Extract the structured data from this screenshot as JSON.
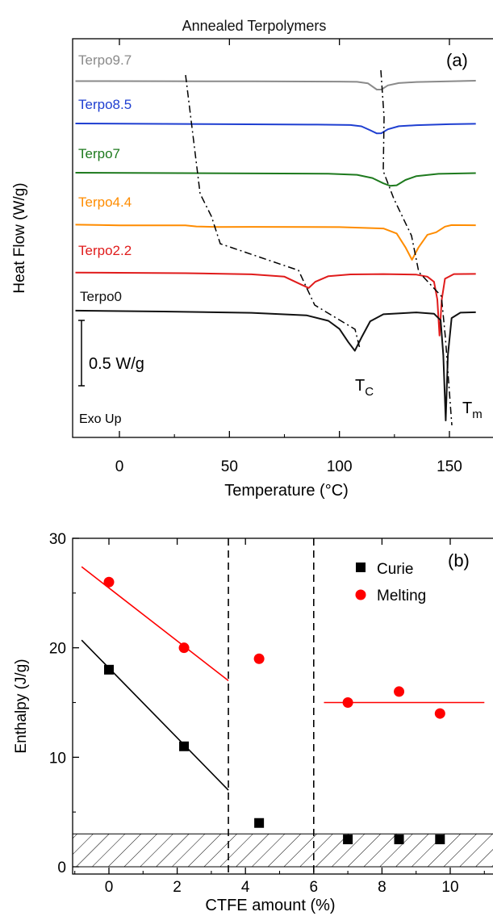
{
  "chart_data": [
    {
      "type": "line",
      "panel_label": "(a)",
      "title": "Annealed Terpolymers",
      "xlabel": "Temperature (°C)",
      "ylabel": "Heat Flow (W/g)",
      "xlim": [
        -20,
        162
      ],
      "x_ticks": [
        0,
        50,
        100,
        150
      ],
      "x_tick_labels": [
        "0",
        "50",
        "100",
        "150"
      ],
      "scale_bar_label": "0.5 W/g",
      "annotations": {
        "exo": "Exo Up",
        "tc": "T",
        "tc_sub": "C",
        "tm": "T",
        "tm_sub": "m"
      },
      "series": [
        {
          "name": "Terpo9.7",
          "color": "#8a8a8a",
          "points": [
            [
              -20,
              0.35
            ],
            [
              20,
              0.45
            ],
            [
              60,
              0.6
            ],
            [
              100,
              0.85
            ],
            [
              108,
              1.1
            ],
            [
              113,
              2.5
            ],
            [
              117,
              8.5
            ],
            [
              119,
              8.5
            ],
            [
              122,
              4.5
            ],
            [
              127,
              2.2
            ],
            [
              135,
              1.2
            ],
            [
              150,
              0.5
            ],
            [
              162,
              0
            ]
          ]
        },
        {
          "name": "Terpo8.5",
          "color": "#1f3fd1",
          "points": [
            [
              -20,
              0
            ],
            [
              40,
              0.6
            ],
            [
              90,
              1.1
            ],
            [
              105,
              1.5
            ],
            [
              110,
              2.7
            ],
            [
              114,
              6.5
            ],
            [
              117,
              9.5
            ],
            [
              119,
              9.3
            ],
            [
              122,
              5.5
            ],
            [
              127,
              2.6
            ],
            [
              135,
              1.6
            ],
            [
              150,
              0.7
            ],
            [
              162,
              0.3
            ]
          ]
        },
        {
          "name": "Terpo7",
          "color": "#1e7a1e",
          "points": [
            [
              -20,
              0
            ],
            [
              50,
              0.6
            ],
            [
              95,
              1.1
            ],
            [
              108,
              2.2
            ],
            [
              115,
              5.5
            ],
            [
              120,
              11
            ],
            [
              123,
              13.5
            ],
            [
              126,
              13
            ],
            [
              130,
              7.5
            ],
            [
              135,
              3.5
            ],
            [
              145,
              1.2
            ],
            [
              162,
              0.4
            ]
          ]
        },
        {
          "name": "Terpo4.4",
          "color": "#ff8c00",
          "points": [
            [
              -20,
              -1
            ],
            [
              0,
              -0.5
            ],
            [
              30,
              -0.5
            ],
            [
              35,
              0.4
            ],
            [
              45,
              0.8
            ],
            [
              60,
              0.7
            ],
            [
              100,
              0.9
            ],
            [
              120,
              2
            ],
            [
              126,
              6
            ],
            [
              130,
              17
            ],
            [
              133,
              27
            ],
            [
              136,
              17
            ],
            [
              140,
              7
            ],
            [
              144,
              5
            ],
            [
              148,
              0.5
            ],
            [
              151,
              -0.7
            ],
            [
              162,
              -0.6
            ]
          ]
        },
        {
          "name": "Terpo2.2",
          "color": "#e01b1b",
          "points": [
            [
              -20,
              -1
            ],
            [
              30,
              -0.4
            ],
            [
              60,
              0.7
            ],
            [
              75,
              3
            ],
            [
              82,
              10
            ],
            [
              86,
              14
            ],
            [
              89,
              8
            ],
            [
              95,
              2.5
            ],
            [
              105,
              0.8
            ],
            [
              120,
              0.5
            ],
            [
              135,
              1
            ],
            [
              140,
              3
            ],
            [
              143,
              8
            ],
            [
              144.5,
              25
            ],
            [
              145.5,
              60
            ],
            [
              146.5,
              25
            ],
            [
              148,
              5
            ],
            [
              152,
              0.5
            ],
            [
              162,
              0.3
            ]
          ]
        },
        {
          "name": "Terpo0",
          "color": "#111111",
          "points": [
            [
              -20,
              -0.8
            ],
            [
              20,
              0
            ],
            [
              60,
              1.2
            ],
            [
              85,
              3.5
            ],
            [
              95,
              8.5
            ],
            [
              100,
              16
            ],
            [
              104,
              28
            ],
            [
              107,
              36
            ],
            [
              110,
              24
            ],
            [
              114,
              9
            ],
            [
              120,
              2.5
            ],
            [
              135,
              0.8
            ],
            [
              143,
              2
            ],
            [
              146,
              8
            ],
            [
              147.2,
              40
            ],
            [
              148.3,
              100
            ],
            [
              149.3,
              40
            ],
            [
              151,
              6
            ],
            [
              155,
              1
            ],
            [
              162,
              0.7
            ]
          ]
        }
      ]
    },
    {
      "type": "scatter",
      "panel_label": "(b)",
      "xlabel": "CTFE amount (%)",
      "ylabel": "Enthalpy (J/g)",
      "xlim": [
        -1,
        11
      ],
      "ylim": [
        0,
        30
      ],
      "x_ticks": [
        0,
        2,
        4,
        6,
        8,
        10
      ],
      "x_tick_labels": [
        "0",
        "2",
        "4",
        "6",
        "8",
        "10"
      ],
      "y_ticks": [
        0,
        10,
        20,
        30
      ],
      "y_tick_labels": [
        "0",
        "10",
        "20",
        "30"
      ],
      "legend_position": "top-right",
      "series": [
        {
          "name": "Curie",
          "marker": "square",
          "color": "#000000",
          "x": [
            0,
            2.2,
            4.4,
            7,
            8.5,
            9.7
          ],
          "y": [
            18,
            11,
            4,
            2.5,
            2.5,
            2.5
          ]
        },
        {
          "name": "Melting",
          "marker": "circle",
          "color": "#ff0000",
          "x": [
            0,
            2.2,
            4.4,
            7,
            8.5,
            9.7
          ],
          "y": [
            26,
            20,
            19,
            15,
            16,
            14
          ]
        }
      ],
      "fit_lines": [
        {
          "color": "#ff0000",
          "x": [
            -0.8,
            3.5
          ],
          "y": [
            27.4,
            17
          ]
        },
        {
          "color": "#000000",
          "x": [
            -0.8,
            3.5
          ],
          "y": [
            20.7,
            7
          ]
        },
        {
          "color": "#ff0000",
          "x": [
            6.3,
            11
          ],
          "y": [
            15,
            15
          ]
        }
      ],
      "vertical_dashed_x": [
        3.5,
        6
      ],
      "hatched_band": [
        0,
        3
      ]
    }
  ]
}
